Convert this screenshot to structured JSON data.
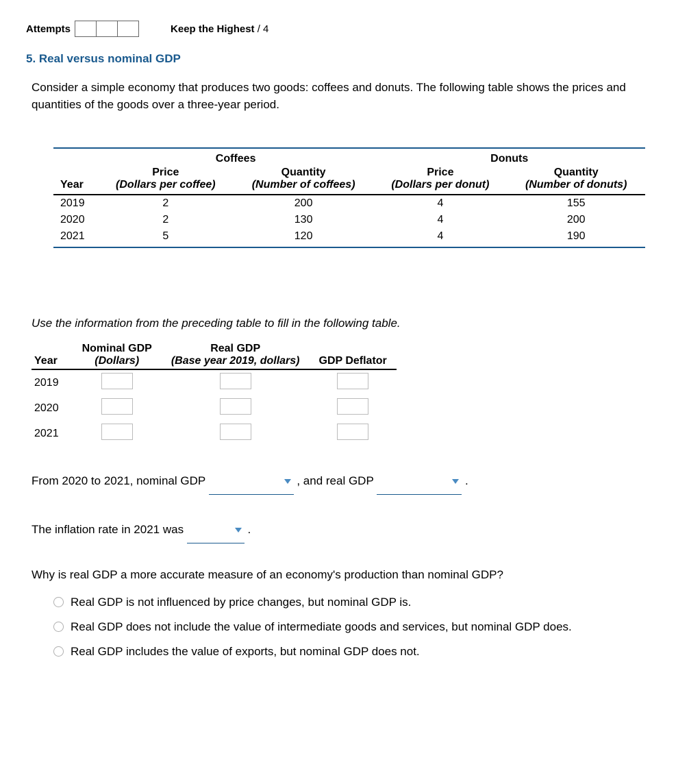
{
  "header": {
    "attempts_label": "Attempts",
    "attempt_count": 3,
    "keep_label": "Keep the Highest",
    "keep_suffix": " / 4"
  },
  "title": "5. Real versus nominal GDP",
  "prompt": "Consider a simple economy that produces two goods: coffees and donuts. The following table shows the prices and quantities of the goods over a three-year period.",
  "data_table": {
    "group_headers": [
      "Coffees",
      "Donuts"
    ],
    "year_header": "Year",
    "sub_headers": [
      {
        "top": "Price",
        "sub": "(Dollars per coffee)"
      },
      {
        "top": "Quantity",
        "sub": "(Number of coffees)"
      },
      {
        "top": "Price",
        "sub": "(Dollars per donut)"
      },
      {
        "top": "Quantity",
        "sub": "(Number of donuts)"
      }
    ],
    "rows": [
      {
        "year": "2019",
        "c_price": "2",
        "c_qty": "200",
        "d_price": "4",
        "d_qty": "155"
      },
      {
        "year": "2020",
        "c_price": "2",
        "c_qty": "130",
        "d_price": "4",
        "d_qty": "200"
      },
      {
        "year": "2021",
        "c_price": "5",
        "c_qty": "120",
        "d_price": "4",
        "d_qty": "190"
      }
    ]
  },
  "instruction": "Use the information from the preceding table to fill in the following table.",
  "input_table": {
    "headers": {
      "year": "Year",
      "nominal": {
        "top": "Nominal GDP",
        "sub": "(Dollars)"
      },
      "real": {
        "top": "Real GDP",
        "sub": "(Base year 2019, dollars)"
      },
      "deflator": "GDP Deflator"
    },
    "years": [
      "2019",
      "2020",
      "2021"
    ]
  },
  "sentences": {
    "s1_a": "From 2020 to 2021, nominal GDP ",
    "s1_b": " , and real GDP ",
    "s1_c": " .",
    "s2_a": "The inflation rate in 2021 was ",
    "s2_b": " ."
  },
  "mc": {
    "question": "Why is real GDP a more accurate measure of an economy's production than nominal GDP?",
    "options": [
      "Real GDP is not influenced by price changes, but nominal GDP is.",
      "Real GDP does not include the value of intermediate goods and services, but nominal GDP does.",
      "Real GDP includes the value of exports, but nominal GDP does not."
    ]
  },
  "colors": {
    "accent": "#1a5a8e",
    "dropdown_arrow": "#4a8bc2",
    "border_box": "#bbbbbb",
    "radio_border": "#b0b0b0"
  }
}
